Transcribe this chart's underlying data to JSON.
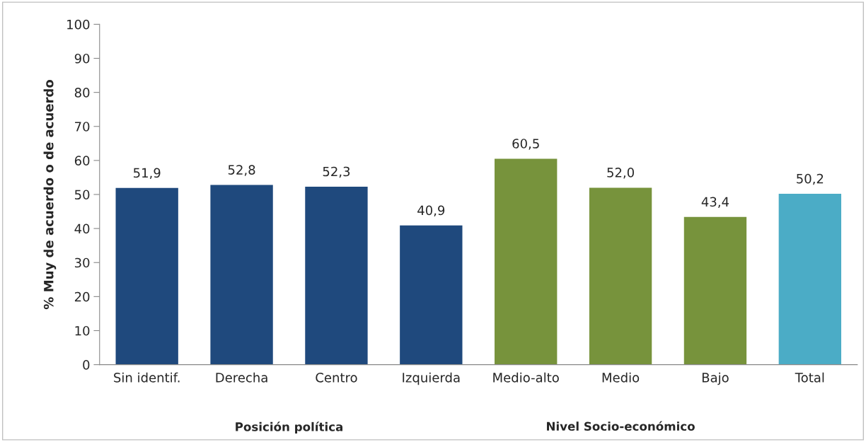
{
  "chart_data": {
    "type": "bar",
    "ylabel": "% Muy de acuerdo o de acuerdo",
    "categories": [
      "Sin identif.",
      "Derecha",
      "Centro",
      "Izquierda",
      "Medio-alto",
      "Medio",
      "Bajo",
      "Total"
    ],
    "values": [
      51.9,
      52.8,
      52.3,
      40.9,
      60.5,
      52.0,
      43.4,
      50.2
    ],
    "value_labels": [
      "51,9",
      "52,8",
      "52,3",
      "40,9",
      "60,5",
      "52,0",
      "43,4",
      "50,2"
    ],
    "colors": [
      "#1f497d",
      "#1f497d",
      "#1f497d",
      "#1f497d",
      "#77933c",
      "#77933c",
      "#77933c",
      "#4bacc6"
    ],
    "ylim": [
      0,
      100
    ],
    "yticks": [
      0,
      10,
      20,
      30,
      40,
      50,
      60,
      70,
      80,
      90,
      100
    ],
    "annotations": [
      "Posición política",
      "Nivel Socio-económico"
    ],
    "grid": false,
    "legend": false
  }
}
